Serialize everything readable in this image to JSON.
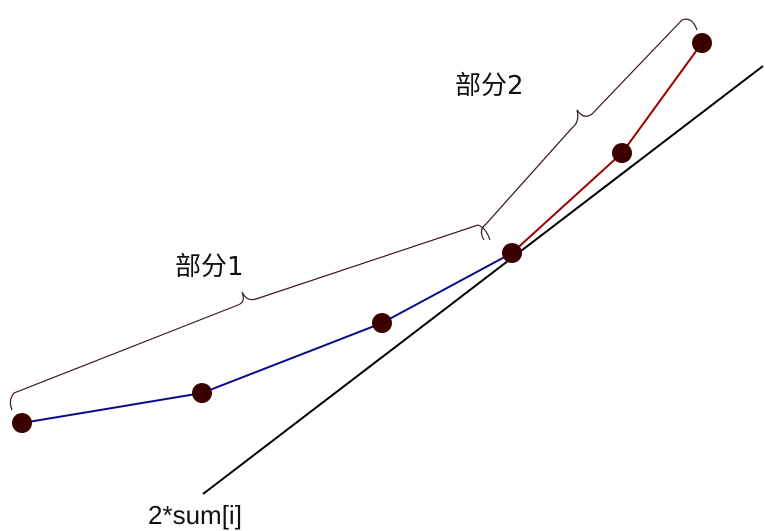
{
  "labels": {
    "part1": "部分1",
    "part2": "部分2",
    "line": "2*sum[i]"
  },
  "colors": {
    "part1_line": "#0a0a8c",
    "part2_line": "#a00000",
    "tangent_line": "#000000",
    "points": "#3a0000",
    "braces": "#3a1a1a"
  }
}
